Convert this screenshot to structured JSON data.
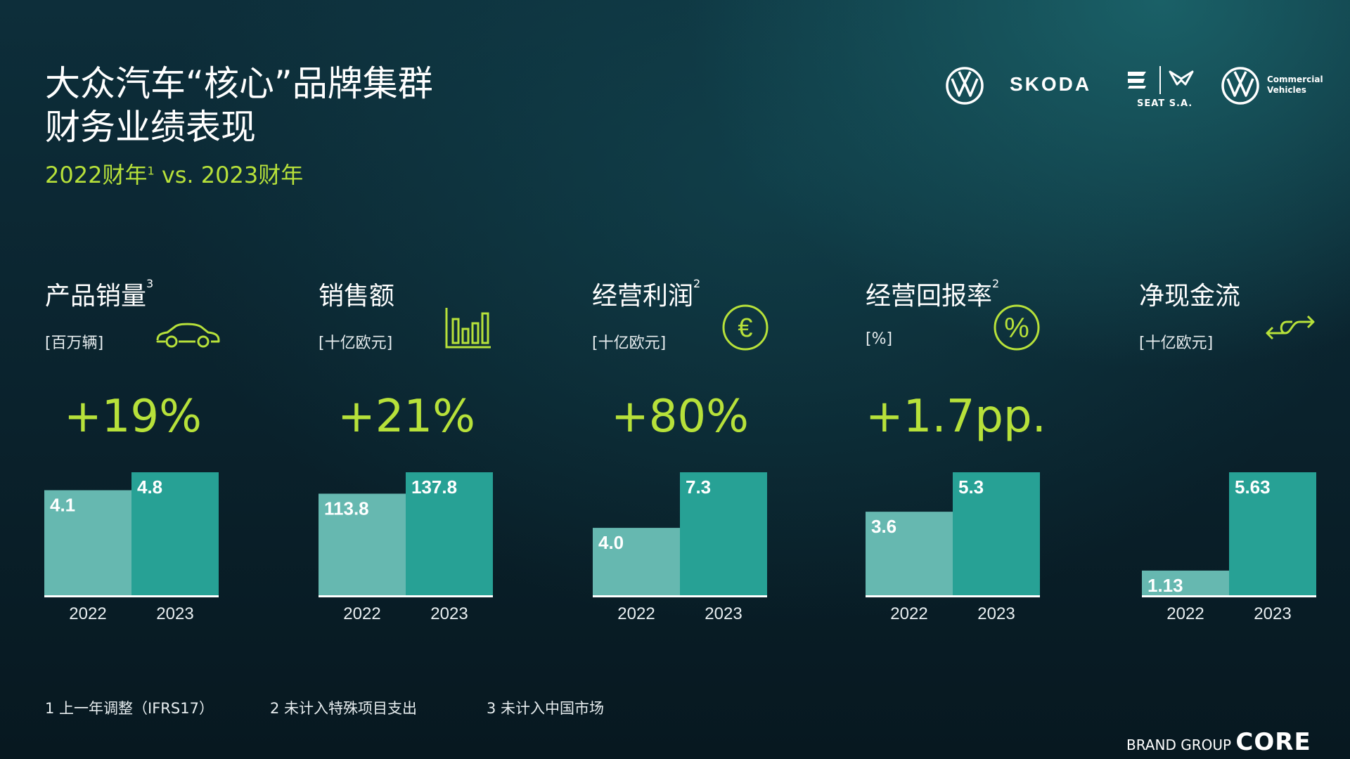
{
  "header": {
    "title_line1": "大众汽车“核心”品牌集群",
    "title_line2": "财务业绩表现",
    "subtitle_a": "2022财年",
    "subtitle_sup": "1",
    "subtitle_b": " vs. 2023财年"
  },
  "logos": {
    "skoda": "SKODA",
    "seat": "SEAT S.A.",
    "commercial_line1": "Commercial",
    "commercial_line2": "Vehicles"
  },
  "accent_color": "#b7e13a",
  "bar_colors": {
    "y2022": "#66b8b0",
    "y2023": "#27a195"
  },
  "kpis": [
    {
      "name": "产品销量",
      "sup": "3",
      "unit": "[百万辆]",
      "change": "+19%",
      "icon": "car-icon"
    },
    {
      "name": "销售额",
      "sup": "",
      "unit": "[十亿欧元]",
      "change": "+21%",
      "icon": "bar-chart-icon"
    },
    {
      "name": "经营利润",
      "sup": "2",
      "unit": "[十亿欧元]",
      "change": "+80%",
      "icon": "euro-icon"
    },
    {
      "name": "经营回报率",
      "sup": "2",
      "unit": "[%]",
      "change": "+1.7pp.",
      "icon": "percent-icon"
    },
    {
      "name": "净现金流",
      "sup": "",
      "unit": "[十亿欧元]",
      "change": "",
      "icon": "exchange-arrows-icon"
    }
  ],
  "chart_data": [
    {
      "type": "bar",
      "categories": [
        "2022",
        "2023"
      ],
      "values": [
        4.1,
        4.8
      ],
      "labels": [
        "4.1",
        "4.8"
      ]
    },
    {
      "type": "bar",
      "categories": [
        "2022",
        "2023"
      ],
      "values": [
        113.8,
        137.8
      ],
      "labels": [
        "113.8",
        "137.8"
      ]
    },
    {
      "type": "bar",
      "categories": [
        "2022",
        "2023"
      ],
      "values": [
        4.0,
        7.3
      ],
      "labels": [
        "4.0",
        "7.3"
      ]
    },
    {
      "type": "bar",
      "categories": [
        "2022",
        "2023"
      ],
      "values": [
        3.6,
        5.3
      ],
      "labels": [
        "3.6",
        "5.3"
      ]
    },
    {
      "type": "bar",
      "categories": [
        "2022",
        "2023"
      ],
      "values": [
        1.13,
        5.63
      ],
      "labels": [
        "1.13",
        "5.63"
      ]
    }
  ],
  "footnotes": [
    "1 上一年调整（IFRS17）",
    "2 未计入特殊项目支出",
    "3 未计入中国市场"
  ],
  "footer": {
    "brand_prefix": "BRAND GROUP",
    "brand_core": "CORE"
  }
}
